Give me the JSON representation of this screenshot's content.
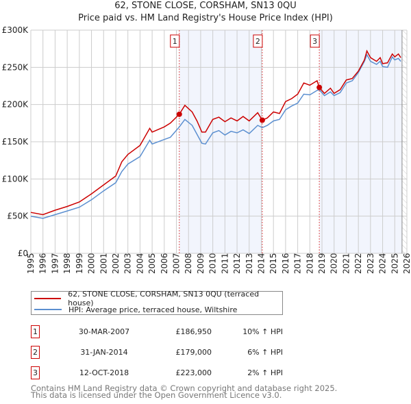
{
  "title": "62, STONE CLOSE, CORSHAM, SN13 0QU",
  "subtitle": "Price paid vs. HM Land Registry's House Price Index (HPI)",
  "chart_data": {
    "type": "line",
    "title": "62, STONE CLOSE, CORSHAM, SN13 0QU",
    "subtitle": "Price paid vs. HM Land Registry's House Price Index (HPI)",
    "xlim": [
      1995,
      2026
    ],
    "ylim": [
      0,
      300000
    ],
    "y_ticks": [
      0,
      50000,
      100000,
      150000,
      200000,
      250000,
      300000
    ],
    "y_tick_labels": [
      "£0",
      "£50K",
      "£100K",
      "£150K",
      "£200K",
      "£250K",
      "£300K"
    ],
    "x_ticks": [
      "1995",
      "1996",
      "1997",
      "1998",
      "1999",
      "2000",
      "2001",
      "2002",
      "2003",
      "2004",
      "2005",
      "2006",
      "2007",
      "2008",
      "2009",
      "2010",
      "2011",
      "2012",
      "2013",
      "2014",
      "2015",
      "2016",
      "2017",
      "2018",
      "2019",
      "2020",
      "2021",
      "2022",
      "2023",
      "2024",
      "2025",
      "2026"
    ],
    "grid": true,
    "legend_placement": "below",
    "series": [
      {
        "name": "62, STONE CLOSE, CORSHAM, SN13 0QU (terraced house)",
        "color": "#cc0000",
        "x": [
          1995,
          1996,
          1997,
          1998,
          1999,
          2000,
          2001,
          2002,
          2002.5,
          2003,
          2004,
          2004.8,
          2005,
          2006,
          2006.5,
          2007.24,
          2007.7,
          2008.3,
          2008.7,
          2009.1,
          2009.4,
          2010,
          2010.5,
          2011,
          2011.5,
          2012,
          2012.5,
          2013,
          2013.7,
          2014.08,
          2014.5,
          2015,
          2015.5,
          2016,
          2016.5,
          2017,
          2017.5,
          2018,
          2018.6,
          2018.78,
          2019.2,
          2019.7,
          2020,
          2020.5,
          2021,
          2021.5,
          2022,
          2022.5,
          2022.7,
          2023,
          2023.5,
          2023.8,
          2024,
          2024.4,
          2024.8,
          2025,
          2025.3,
          2025.5
        ],
        "y": [
          55000,
          52000,
          58000,
          63000,
          69000,
          80000,
          92000,
          104000,
          123000,
          133000,
          145000,
          168000,
          163000,
          170000,
          175000,
          186950,
          199000,
          190000,
          178000,
          163000,
          163000,
          180000,
          183000,
          177000,
          182000,
          178000,
          184000,
          178000,
          189000,
          179000,
          182000,
          190000,
          188000,
          204000,
          208000,
          214000,
          229000,
          226000,
          232000,
          223000,
          215000,
          222000,
          215000,
          220000,
          233000,
          235000,
          245000,
          260000,
          272000,
          263000,
          258000,
          263000,
          255000,
          256000,
          268000,
          264000,
          268000,
          263000
        ]
      },
      {
        "name": "HPI: Average price, terraced house, Wiltshire",
        "color": "#5b8fd0",
        "x": [
          1995,
          1996,
          1997,
          1998,
          1999,
          2000,
          2001,
          2002,
          2002.5,
          2003,
          2004,
          2004.8,
          2005,
          2006,
          2006.5,
          2007.24,
          2007.7,
          2008.3,
          2008.7,
          2009.1,
          2009.4,
          2010,
          2010.5,
          2011,
          2011.5,
          2012,
          2012.5,
          2013,
          2013.7,
          2014.08,
          2014.5,
          2015,
          2015.5,
          2016,
          2016.5,
          2017,
          2017.5,
          2018,
          2018.6,
          2018.78,
          2019.2,
          2019.7,
          2020,
          2020.5,
          2021,
          2021.5,
          2022,
          2022.5,
          2022.7,
          2023,
          2023.5,
          2023.8,
          2024,
          2024.4,
          2024.8,
          2025,
          2025.3,
          2025.5
        ],
        "y": [
          50000,
          47000,
          52000,
          57000,
          62000,
          72000,
          84000,
          95000,
          110000,
          120000,
          130000,
          152000,
          147000,
          153000,
          156000,
          170000,
          180000,
          172000,
          160000,
          148000,
          147000,
          162000,
          165000,
          159000,
          164000,
          162000,
          166000,
          161000,
          172000,
          169000,
          172000,
          178000,
          180000,
          193000,
          198000,
          202000,
          214000,
          213000,
          219000,
          220000,
          212000,
          217000,
          212000,
          216000,
          229000,
          232000,
          243000,
          258000,
          267000,
          258000,
          254000,
          258000,
          251000,
          250000,
          264000,
          260000,
          262000,
          258000
        ]
      }
    ],
    "sales": [
      {
        "label": "1",
        "x": 2007.24,
        "y": 186950
      },
      {
        "label": "2",
        "x": 2014.08,
        "y": 179000
      },
      {
        "label": "3",
        "x": 2018.78,
        "y": 223000
      }
    ],
    "shaded_ranges": [
      [
        2007.24,
        2014.08
      ],
      [
        2018.78,
        2025.6
      ]
    ],
    "hatched_from": 2025.6
  },
  "legend": {
    "property": "62, STONE CLOSE, CORSHAM, SN13 0QU (terraced house)",
    "hpi": "HPI: Average price, terraced house, Wiltshire"
  },
  "table": [
    {
      "num": "1",
      "date": "30-MAR-2007",
      "price": "£186,950",
      "hpi": "10% ↑ HPI"
    },
    {
      "num": "2",
      "date": "31-JAN-2014",
      "price": "£179,000",
      "hpi": "6% ↑ HPI"
    },
    {
      "num": "3",
      "date": "12-OCT-2018",
      "price": "£223,000",
      "hpi": "2% ↑ HPI"
    }
  ],
  "footer": {
    "line1": "Contains HM Land Registry data © Crown copyright and database right 2025.",
    "line2": "This data is licensed under the Open Government Licence v3.0."
  }
}
